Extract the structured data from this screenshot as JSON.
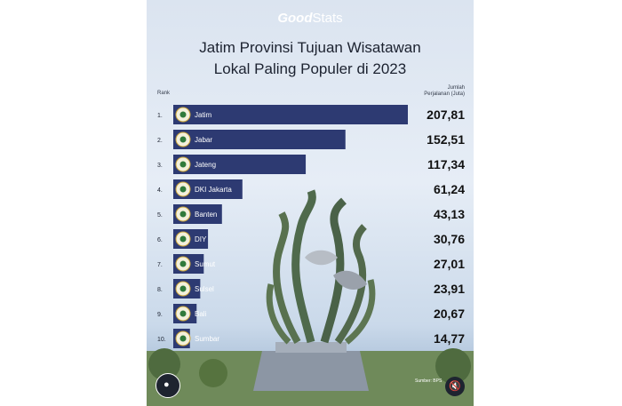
{
  "brand": {
    "bold": "Good",
    "light": "Stats"
  },
  "headers": {
    "rank": "Rank",
    "value_line1": "Jumlah",
    "value_line2": "Perjalanan (Juta)"
  },
  "footer": {
    "source": "Sumber: BPS",
    "user_icon": "user-icon",
    "mute_icon": "mute-icon"
  },
  "colors": {
    "bar": "#2d3a72",
    "value": "#111111",
    "label": "#ffffff"
  },
  "chart_data": {
    "type": "bar",
    "orientation": "horizontal",
    "title": "Jatim Provinsi Tujuan Wisatawan Lokal Paling Populer di 2023",
    "title_lines": [
      "Jatim Provinsi Tujuan Wisatawan",
      "Lokal Paling Populer di 2023"
    ],
    "ylabel": "Jumlah Perjalanan (Juta)",
    "ranks": [
      "1.",
      "2.",
      "3.",
      "4.",
      "5.",
      "6.",
      "7.",
      "8.",
      "9.",
      "10."
    ],
    "categories": [
      "Jatim",
      "Jabar",
      "Jateng",
      "DKI Jakarta",
      "Banten",
      "DIY",
      "Sumut",
      "Sulsel",
      "Bali",
      "Sumbar"
    ],
    "values": [
      207.81,
      152.51,
      117.34,
      61.24,
      43.13,
      30.76,
      27.01,
      23.91,
      20.67,
      14.77
    ],
    "value_labels": [
      "207,81",
      "152,51",
      "117,34",
      "61,24",
      "43,13",
      "30,76",
      "27,01",
      "23,91",
      "20,67",
      "14,77"
    ],
    "xlim": [
      0,
      207.81
    ]
  }
}
